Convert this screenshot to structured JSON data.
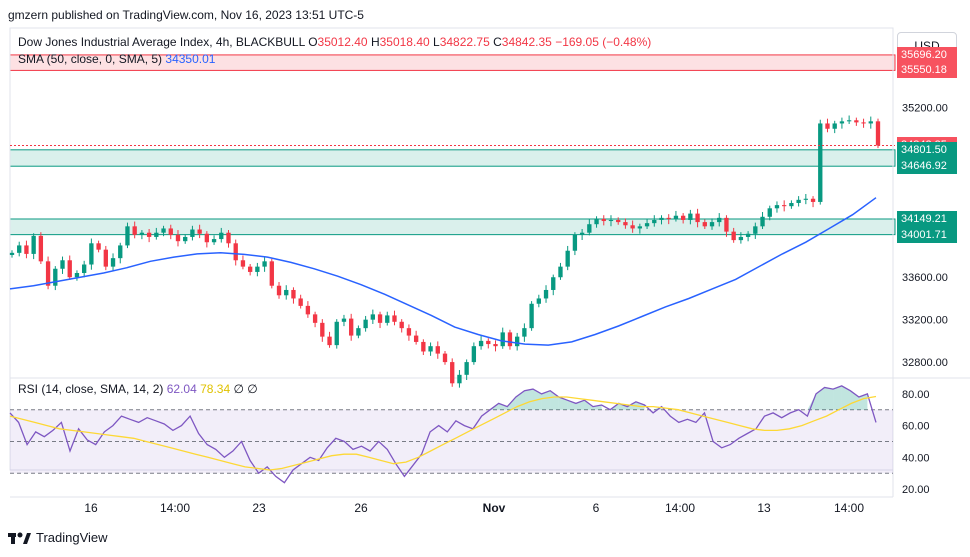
{
  "header": {
    "published": "gmzern published on TradingView.com, Nov 16, 2023 13:51 UTC-5",
    "symbol": "Dow Jones Industrial Average Index, 4h, BLACKBULL",
    "o_label": "O",
    "o_value": "35012.40",
    "h_label": "H",
    "h_value": "35018.40",
    "l_label": "L",
    "l_value": "34822.75",
    "c_label": "C",
    "c_value": "34842.35",
    "change": "−169.05 (−0.48%)",
    "sma_label": "SMA (50, close, 0, SMA, 5)",
    "sma_value": "34350.01",
    "currency": "USD"
  },
  "rsi_header": {
    "label": "RSI (14, close, SMA, 14, 2)",
    "rsi_value": "62.04",
    "ma_value": "78.34",
    "extra1": "∅",
    "extra2": "∅"
  },
  "price_labels": [
    {
      "text": "35696.20",
      "value": 35696.2,
      "bg": "#f7525f"
    },
    {
      "text": "35550.18",
      "value": 35550.18,
      "bg": "#f7525f"
    },
    {
      "text": "34842.35",
      "value": 34842.35,
      "bg": "#f7525f"
    },
    {
      "text": "08:03",
      "value": 34752,
      "bg": "#f7525f"
    },
    {
      "text": "34801.50",
      "value": 34801.5,
      "bg": "#089981"
    },
    {
      "text": "34646.92",
      "value": 34646.92,
      "bg": "#089981"
    },
    {
      "text": "34149.21",
      "value": 34149.21,
      "bg": "#089981"
    },
    {
      "text": "34001.71",
      "value": 34001.71,
      "bg": "#089981"
    }
  ],
  "footer": {
    "brand": "TradingView"
  },
  "colors": {
    "up": "#089981",
    "down": "#f23645",
    "sma": "#2962ff",
    "rsi": "#7e57c2",
    "rsi_ma": "#fdd835"
  },
  "chart_data": {
    "type": "candlestick",
    "price_axis": {
      "ticks": [
        35200,
        34800,
        34400,
        34000,
        33600,
        33200,
        32800
      ],
      "tick_labels": [
        "35200.00",
        "33600.00",
        "33200.00",
        "32800.00"
      ],
      "range": [
        32650,
        35950
      ]
    },
    "x_axis": {
      "tick_labels": [
        "16",
        "14:00",
        "23",
        "26",
        "Nov",
        "6",
        "14:00",
        "13",
        "14:00"
      ]
    },
    "zones": [
      {
        "type": "resistance",
        "from": 35550.18,
        "to": 35696.2
      },
      {
        "type": "support",
        "from": 34646.92,
        "to": 34801.5
      },
      {
        "type": "support",
        "from": 34001.71,
        "to": 34149.21
      }
    ],
    "candles_close": [
      33830,
      33900,
      33820,
      33990,
      33750,
      33520,
      33680,
      33760,
      33600,
      33640,
      33720,
      33920,
      33860,
      33700,
      33780,
      33900,
      34080,
      34000,
      34020,
      33980,
      34020,
      34060,
      34000,
      33940,
      33980,
      34050,
      34010,
      33930,
      33960,
      34020,
      33920,
      33760,
      33700,
      33650,
      33700,
      33750,
      33520,
      33430,
      33480,
      33400,
      33330,
      33250,
      33170,
      33040,
      32960,
      33180,
      33210,
      33050,
      33120,
      33200,
      33250,
      33170,
      33240,
      33180,
      33120,
      33050,
      32990,
      32900,
      32950,
      32880,
      32800,
      32600,
      32680,
      32800,
      32950,
      33000,
      32970,
      32950,
      33080,
      32950,
      33040,
      33120,
      33350,
      33400,
      33480,
      33600,
      33700,
      33850,
      34000,
      34020,
      34100,
      34150,
      34130,
      34140,
      34120,
      34090,
      34060,
      34080,
      34110,
      34140,
      34160,
      34150,
      34180,
      34140,
      34200,
      34120,
      34080,
      34120,
      34160,
      34030,
      33950,
      33980,
      34010,
      34080,
      34170,
      34250,
      34280,
      34270,
      34300,
      34330,
      34340,
      34310,
      35050,
      35000,
      35050,
      35070,
      35080,
      35060,
      35050,
      35070,
      34842.35
    ],
    "sma": [
      33490,
      33520,
      33560,
      33600,
      33640,
      33690,
      33750,
      33790,
      33820,
      33830,
      33815,
      33790,
      33740,
      33680,
      33610,
      33530,
      33440,
      33340,
      33240,
      33130,
      33060,
      33000,
      32970,
      32960,
      32990,
      33060,
      33140,
      33230,
      33320,
      33400,
      33490,
      33580,
      33700,
      33820,
      33930,
      34060,
      34190,
      34350
    ],
    "rsi": {
      "levels": [
        70,
        50,
        30
      ],
      "axis_ticks": [
        80,
        60,
        40,
        20
      ],
      "rsi_values": [
        68,
        62,
        48,
        56,
        53,
        57,
        62,
        44,
        58,
        51,
        48,
        56,
        60,
        66,
        64,
        62,
        65,
        63,
        61,
        57,
        60,
        66,
        55,
        48,
        45,
        40,
        44,
        50,
        38,
        30,
        34,
        28,
        24,
        32,
        36,
        40,
        38,
        46,
        52,
        50,
        45,
        47,
        44,
        50,
        45,
        36,
        28,
        35,
        42,
        56,
        60,
        56,
        63,
        60,
        58,
        66,
        70,
        74,
        72,
        78,
        82,
        83,
        80,
        82,
        78,
        76,
        74,
        76,
        72,
        73,
        70,
        74,
        72,
        75,
        73,
        68,
        72,
        66,
        62,
        64,
        62,
        68,
        50,
        46,
        48,
        52,
        55,
        58,
        66,
        68,
        65,
        68,
        70,
        66,
        80,
        84,
        83,
        85,
        82,
        78,
        80,
        62.04
      ],
      "ma_values": [
        66,
        64,
        62,
        60,
        58,
        57,
        56,
        55,
        54,
        53,
        52,
        50,
        48,
        46,
        44,
        42,
        40,
        38,
        36,
        34,
        33,
        32,
        33,
        35,
        37,
        39,
        41,
        42,
        42,
        40,
        38,
        36,
        37,
        40,
        44,
        48,
        52,
        56,
        60,
        64,
        68,
        72,
        75,
        77,
        78,
        78,
        77,
        76,
        75,
        74,
        73,
        72,
        72,
        71,
        70,
        68,
        66,
        64,
        62,
        60,
        58,
        57,
        57,
        58,
        60,
        63,
        66,
        70,
        74,
        77,
        78.34
      ]
    }
  }
}
